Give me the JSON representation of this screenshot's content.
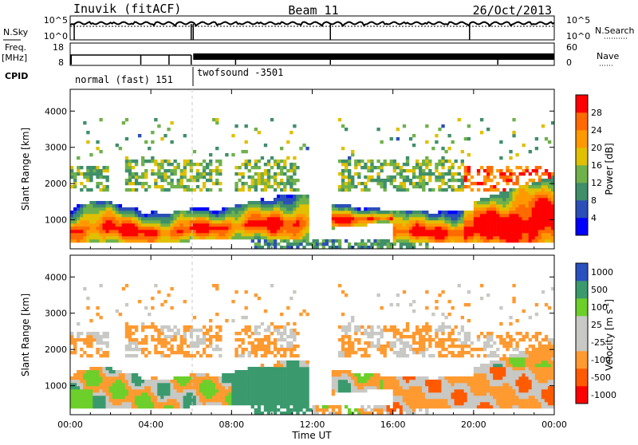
{
  "header": {
    "station": "Inuvik (fitACF)",
    "beam": "Beam 11",
    "date": "26/Oct/2013"
  },
  "strip": {
    "nsky_label": "N.Sky",
    "nsearch_label": "N.Search",
    "freq_label": "Freq.",
    "freq_unit": "[MHz]",
    "nave_label": "Nave",
    "cpid_label": "CPID",
    "nsky_ticks": [
      "10^5",
      "10^0"
    ],
    "nsearch_ticks": [
      "10^5",
      "10^0"
    ],
    "freq_ticks": [
      "18",
      "8"
    ],
    "nave_ticks": [
      "60",
      "0"
    ],
    "cpid_segments": [
      {
        "label": "normal (fast) 151",
        "start": 0,
        "end": 6.05
      },
      {
        "label": "twofsound -3501",
        "start": 6.05,
        "end": 24
      }
    ]
  },
  "colors": {
    "power": [
      "#0000ff",
      "#2b4fb8",
      "#3f8f6a",
      "#6fb14a",
      "#e0c000",
      "#ff9900",
      "#ff6a00",
      "#ff0000"
    ],
    "velocity": [
      "#ff0000",
      "#ff5a00",
      "#ff9a30",
      "#c8c8c4",
      "#c8c8c4",
      "#6ccf2a",
      "#3a9a6e",
      "#2a50c0"
    ]
  },
  "chart_data": [
    {
      "type": "heatmap",
      "name": "power",
      "ylabel": "Slant Range [km]",
      "xlabel": "",
      "xlim": [
        0,
        24
      ],
      "ylim": [
        200,
        4600
      ],
      "yticks": [
        "1000",
        "2000",
        "3000",
        "4000"
      ],
      "colorbar_label": "Power [dB]",
      "colorbar_ticks": [
        "4",
        "8",
        "12",
        "16",
        "20",
        "24",
        "28"
      ],
      "xticks": [
        "00:00",
        "04:00",
        "08:00",
        "12:00",
        "16:00",
        "20:00",
        "00:00"
      ]
    },
    {
      "type": "heatmap",
      "name": "velocity",
      "ylabel": "Slant Range [km]",
      "xlabel": "Time UT",
      "xlim": [
        0,
        24
      ],
      "ylim": [
        200,
        4600
      ],
      "yticks": [
        "1000",
        "2000",
        "3000",
        "4000"
      ],
      "colorbar_label": "Velocity [m s",
      "colorbar_sup": "-1",
      "colorbar_label_end": "]",
      "colorbar_ticks": [
        "1000",
        "500",
        "100",
        "25",
        "-25",
        "-100",
        "-500",
        "-1000"
      ],
      "xticks": [
        "00:00",
        "04:00",
        "08:00",
        "12:00",
        "16:00",
        "20:00",
        "00:00"
      ]
    }
  ]
}
